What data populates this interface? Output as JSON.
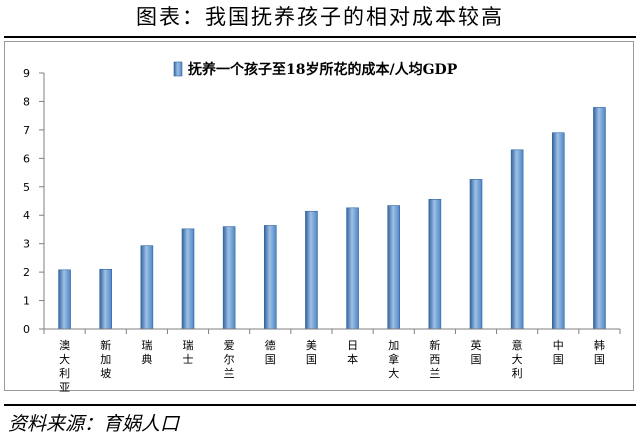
{
  "header": {
    "title": "图表：我国抚养孩子的相对成本较高"
  },
  "footer": {
    "source": "资料来源：育娲人口"
  },
  "colors": {
    "bar_main": "#4f86c6",
    "bar_light": "#9ec0e6",
    "bar_dark": "#33649e",
    "axis": "#7f7f7f"
  },
  "chart_data": {
    "type": "bar",
    "title": "",
    "xlabel": "",
    "ylabel": "",
    "ylim": [
      0,
      9
    ],
    "yticks": [
      0,
      1,
      2,
      3,
      4,
      5,
      6,
      7,
      8,
      9
    ],
    "grid": false,
    "legend_position": "top",
    "categories": [
      "澳大利亚",
      "新加坡",
      "瑞典",
      "瑞士",
      "爱尔兰",
      "德国",
      "美国",
      "日本",
      "加拿大",
      "新西兰",
      "英国",
      "意大利",
      "中国",
      "韩国"
    ],
    "series": [
      {
        "name": "抚养一个孩子至18岁所花的成本/人均GDP",
        "values": [
          2.08,
          2.1,
          2.93,
          3.52,
          3.6,
          3.64,
          4.14,
          4.26,
          4.34,
          4.56,
          5.26,
          6.3,
          6.9,
          7.79
        ]
      }
    ]
  }
}
